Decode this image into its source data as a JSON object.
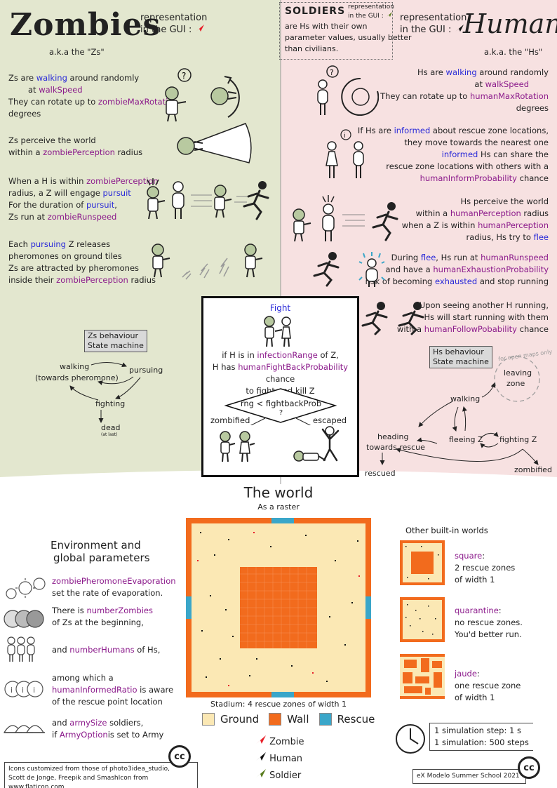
{
  "zombies": {
    "title": "Zombies",
    "gui_label_1": "representation",
    "gui_label_2": "in the GUI :",
    "aka": "a.k.a the \"Zs\"",
    "walk": [
      "Zs are ",
      "walking",
      " around randomly",
      "at ",
      "walkSpeed",
      "They can rotate up to ",
      "zombieMaxRotation",
      "degrees"
    ],
    "perceive": [
      "Zs perceive the world",
      "within a ",
      "zombiePerception",
      " radius"
    ],
    "pursuit": [
      "When a H is within ",
      "zombiePerception",
      "radius, a Z will engage ",
      "pursuit",
      "For the duration of ",
      "pursuit",
      ",",
      "Zs run at ",
      "zombieRunspeed"
    ],
    "pheromone": [
      "Each ",
      "pursuing",
      " Z releases",
      "pheromones  on ground tiles",
      "Zs are attracted by pheromones",
      "inside their ",
      "zombiePerception",
      " radius"
    ],
    "sm_label_1": "Zs behaviour",
    "sm_label_2": "State machine",
    "sm_walking": "walking",
    "sm_walking_sub": "(towards pheromone)",
    "sm_pursuing": "pursuing",
    "sm_fighting": "fighting",
    "sm_dead": "dead",
    "sm_dead_sub": "(at last)"
  },
  "soldiers": {
    "title": "SOLDIERS",
    "gui_label_1": "representation",
    "gui_label_2": "in the GUI :",
    "desc": [
      "are Hs with their own",
      "parameter values, usually better",
      "than civilians."
    ]
  },
  "humans": {
    "title": "Humans",
    "gui_label_1": "representation",
    "gui_label_2": "in the GUI :",
    "aka": "a.k.a. the \"Hs\"",
    "walk": [
      "Hs are ",
      "walking",
      " around randomly",
      "at  ",
      "walkSpeed",
      "They can rotate up to ",
      "humanMaxRotation",
      "degrees"
    ],
    "informed": [
      "If Hs are ",
      "informed",
      " about rescue zone locations,",
      "they move towards the nearest one",
      "informed",
      " Hs can share the",
      "rescue zone locations with others with a",
      "humanInformProbability",
      " chance"
    ],
    "perceive": [
      "Hs perceive the world",
      "within a ",
      "humanPerception",
      " radius",
      "when a Z is within ",
      "humanPerception",
      "radius, Hs try to ",
      "flee"
    ],
    "flee": [
      "During ",
      "flee",
      ", Hs run at ",
      "humanRunspeed",
      "and have a ",
      "humanExhaustionProbability",
      "risk of becoming ",
      "exhausted",
      " and stop running"
    ],
    "follow": [
      "Upon seeing another H running,",
      "Hs will start running with them",
      "with a ",
      "humanFollowPobability",
      " chance"
    ],
    "sm_label_1": "Hs behaviour",
    "sm_label_2": "State machine",
    "sm_open": "for open maps only",
    "sm_leaving": "leaving",
    "sm_zone": "zone",
    "sm_walking": "walking",
    "sm_heading": "heading",
    "sm_towards": "towards rescue",
    "sm_fleeing": "fleeing Z",
    "sm_fighting": "fighting Z",
    "sm_rescued": "rescued",
    "sm_zombified": "zombified"
  },
  "fight": {
    "title": "Fight",
    "line1": [
      "if H is in ",
      "infectionRange",
      " of Z,"
    ],
    "line2": [
      "H has ",
      "humanFightBackProbability",
      " chance"
    ],
    "line3": "to fight and kill Z",
    "decision": "rng < fightbackProb",
    "decision_q": "?",
    "left": "zombified",
    "right": "escaped"
  },
  "world": {
    "title": "The world",
    "subtitle": "As a raster",
    "caption": "Stadium: 4 rescue zones of width 1",
    "legend": [
      {
        "label": "Ground",
        "color": "#fbe8b4"
      },
      {
        "label": "Wall",
        "color": "#f26b1d"
      },
      {
        "label": "Rescue",
        "color": "#3aa6c9"
      }
    ],
    "agents": [
      {
        "label": "Zombie",
        "color": "#e8202a"
      },
      {
        "label": "Human",
        "color": "#111111"
      },
      {
        "label": "Soldier",
        "color": "#5a7d1f"
      }
    ],
    "other_title": "Other built-in worlds",
    "others": [
      {
        "name": "square",
        "lines": [
          "2 rescue zones",
          "of width 1"
        ]
      },
      {
        "name": "quarantine",
        "lines": [
          "no rescue zones.",
          "You'd better run."
        ]
      },
      {
        "name": "jaude",
        "lines": [
          "one rescue zone",
          "of width 1"
        ]
      }
    ],
    "sim_step": "1 simulation step: 1 s",
    "sim_total": "1 simulation: 500 steps"
  },
  "environment": {
    "title_1": "Environment and",
    "title_2": "global parameters",
    "p1": [
      "zombiePheromoneEvaporation",
      "set the rate of evaporation."
    ],
    "p2": [
      "There is ",
      "numberZombies",
      "of Zs at the beginning,"
    ],
    "p3": [
      "and ",
      "numberHumans",
      " of Hs,"
    ],
    "p4": [
      "among which a",
      "humanInformedRatio",
      " is aware",
      "of the rescue point location"
    ],
    "p5": [
      "and ",
      "armySize",
      " soldiers,",
      "if ",
      "ArmyOption",
      "is set to Army"
    ]
  },
  "credits": {
    "left": [
      "Icons customized from those of photo3idea_studio,",
      "Scott de Jonge, Freepik and  SmashIcon from www.flaticon.com"
    ],
    "right": "eX Modelo Summer School 2021",
    "cc": "cc"
  },
  "colors": {
    "zombie_bg": "#e3e7cf",
    "human_bg": "#f7e1e1",
    "keyword": "#8b1a8b",
    "state_word": "#2a2ad8"
  }
}
